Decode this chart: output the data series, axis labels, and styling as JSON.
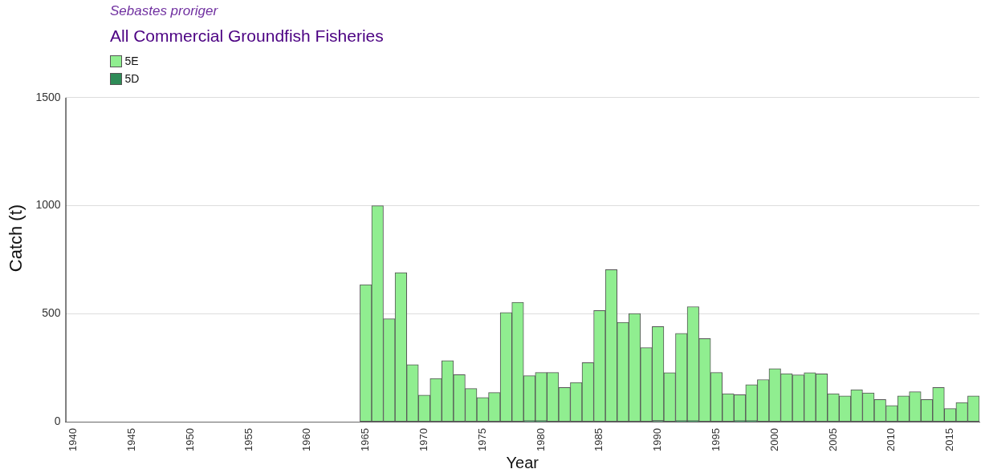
{
  "chart_data": {
    "type": "bar",
    "title": "All Commercial Groundfish Fisheries",
    "subtitle": "Sebastes proriger",
    "xlabel": "Year",
    "ylabel": "Catch (t)",
    "x": [
      1965,
      1966,
      1967,
      1968,
      1969,
      1970,
      1971,
      1972,
      1973,
      1974,
      1975,
      1976,
      1977,
      1978,
      1979,
      1980,
      1981,
      1982,
      1983,
      1984,
      1985,
      1986,
      1987,
      1988,
      1989,
      1990,
      1991,
      1992,
      1993,
      1994,
      1995,
      1996,
      1997,
      1998,
      1999,
      2000,
      2001,
      2002,
      2003,
      2004,
      2005,
      2006,
      2007,
      2008,
      2009,
      2010,
      2011,
      2012,
      2013,
      2014,
      2015,
      2016,
      2017
    ],
    "series": [
      {
        "name": "5D",
        "color": "#2e8b57",
        "values": [
          0,
          0,
          0,
          0,
          0,
          0,
          0,
          0,
          0,
          0,
          0,
          0,
          0,
          0,
          3,
          3,
          0,
          0,
          0,
          0,
          0,
          0,
          0,
          0,
          0,
          4,
          0,
          3,
          3,
          0,
          0,
          0,
          3,
          3,
          0,
          0,
          0,
          0,
          0,
          0,
          0,
          0,
          0,
          0,
          0,
          0,
          0,
          0,
          0,
          0,
          0,
          0,
          0
        ]
      },
      {
        "name": "5E",
        "color": "#90ee90",
        "values": [
          635,
          1000,
          477,
          690,
          264,
          123,
          200,
          283,
          218,
          154,
          112,
          135,
          506,
          553,
          210,
          225,
          228,
          159,
          182,
          274,
          515,
          704,
          460,
          501,
          343,
          437,
          227,
          406,
          530,
          385,
          228,
          130,
          122,
          169,
          195,
          246,
          223,
          217,
          227,
          222,
          130,
          120,
          148,
          134,
          103,
          75,
          120,
          139,
          103,
          159,
          61,
          89,
          120
        ]
      }
    ],
    "stacked": true,
    "xlim": [
      1939.3,
      2017.5
    ],
    "xticks": [
      1940,
      1945,
      1950,
      1955,
      1960,
      1965,
      1970,
      1975,
      1980,
      1985,
      1990,
      1995,
      2000,
      2005,
      2010,
      2015
    ],
    "ylim": [
      0,
      1700
    ],
    "yticks": [
      0,
      500,
      1000,
      1500
    ],
    "grid": "y",
    "legend": "top left"
  }
}
